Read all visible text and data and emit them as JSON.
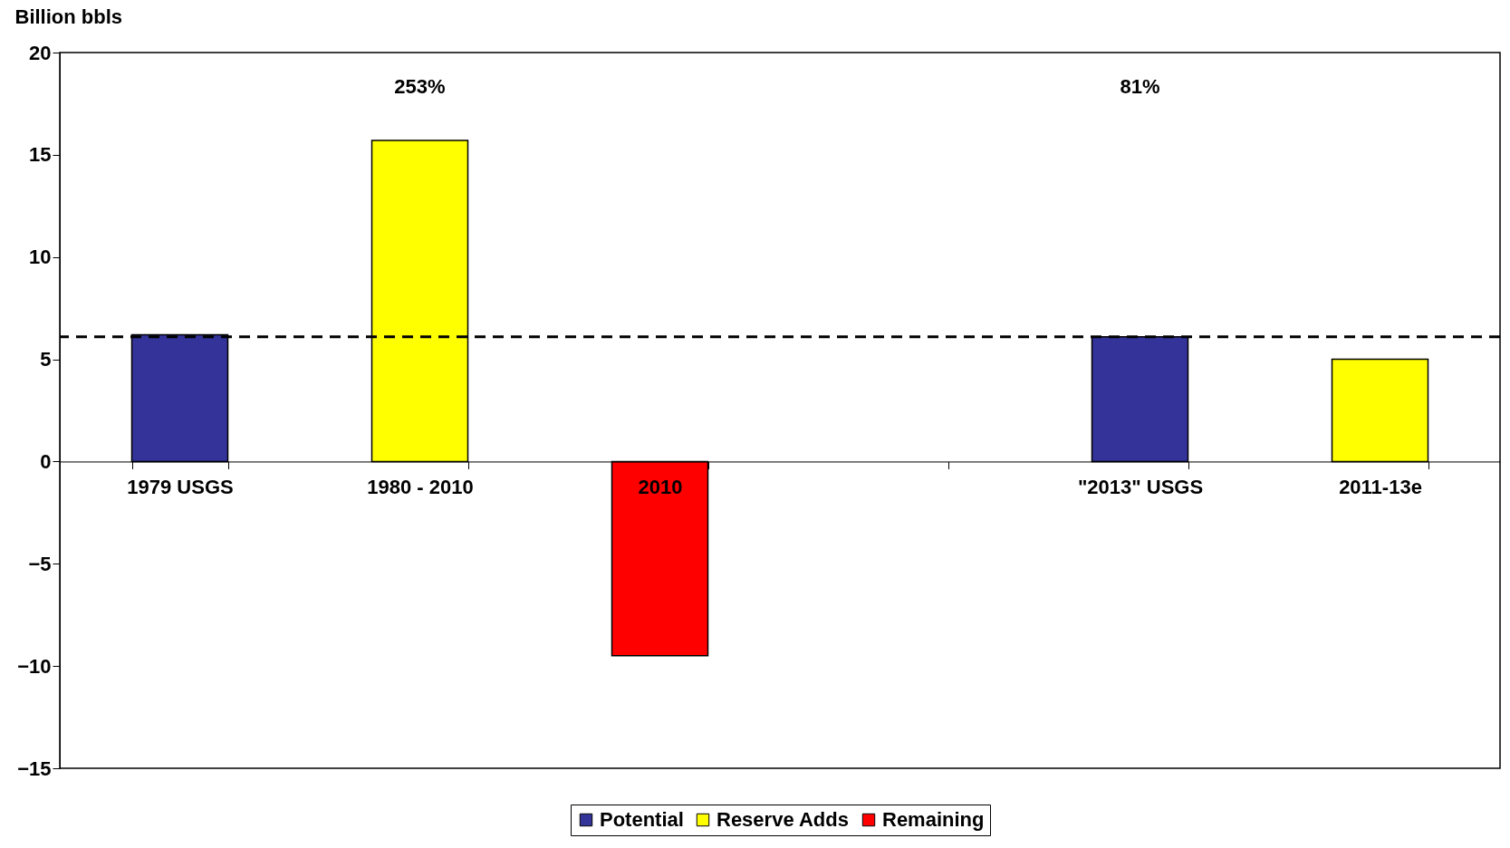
{
  "chart_data": {
    "type": "bar",
    "ylabel": "Billion bbls",
    "categories": [
      "1979 USGS",
      "1980 - 2010",
      "2010",
      null,
      "\"2013\" USGS",
      "2011-13e"
    ],
    "series": [
      {
        "name": "Potential",
        "color": "#333399",
        "values": [
          6.2,
          null,
          null,
          null,
          6.1,
          null
        ]
      },
      {
        "name": "Reserve Adds",
        "color": "#ffff00",
        "values": [
          null,
          15.7,
          null,
          null,
          null,
          5.0
        ]
      },
      {
        "name": "Remaining",
        "color": "#ff0000",
        "values": [
          null,
          null,
          -9.5,
          null,
          null,
          null
        ]
      }
    ],
    "ylim": [
      -15,
      20
    ],
    "yticks": [
      -15,
      -10,
      -5,
      0,
      5,
      10,
      15,
      20
    ],
    "grid": false,
    "legend": "bottom",
    "ref_lines": [
      {
        "axis": "y",
        "value": 6.1,
        "line_style": "dashed"
      }
    ],
    "annotations": [
      "253%",
      "81%"
    ]
  }
}
